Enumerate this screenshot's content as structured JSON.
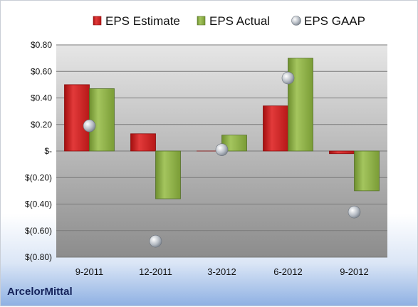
{
  "company": "ArcelorMittal",
  "chart_data": {
    "type": "bar",
    "categories": [
      "9-2011",
      "12-2011",
      "3-2012",
      "6-2012",
      "9-2012"
    ],
    "series": [
      {
        "name": "EPS Estimate",
        "kind": "bar",
        "color": "#d12a2a",
        "values": [
          0.5,
          0.13,
          0.0,
          0.34,
          -0.02
        ]
      },
      {
        "name": "EPS Actual",
        "kind": "bar",
        "color": "#8db24a",
        "values": [
          0.47,
          -0.36,
          0.12,
          0.7,
          -0.3
        ]
      },
      {
        "name": "EPS GAAP",
        "kind": "scatter",
        "color": "#b9c2cc",
        "values": [
          0.19,
          -0.68,
          0.01,
          0.55,
          -0.46
        ]
      }
    ],
    "yticks": [
      0.8,
      0.6,
      0.4,
      0.2,
      0,
      -0.2,
      -0.4,
      -0.6,
      -0.8
    ],
    "ytick_labels": [
      "$0.80",
      "$0.60",
      "$0.40",
      "$0.20",
      "$-",
      "$(0.20)",
      "$(0.40)",
      "$(0.60)",
      "$(0.80)"
    ],
    "ylim": [
      -0.8,
      0.8
    ],
    "grid": true,
    "legend_position": "top"
  }
}
